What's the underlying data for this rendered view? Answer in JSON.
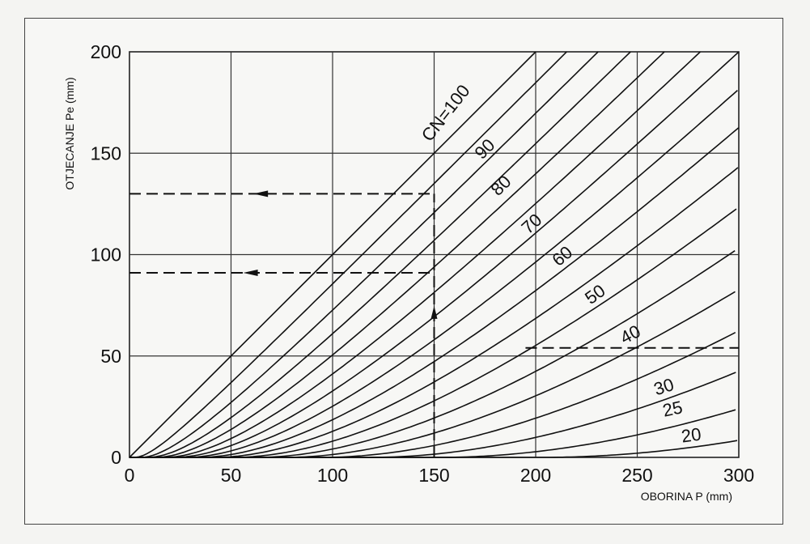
{
  "chart_data": {
    "type": "line",
    "title": "",
    "xlabel": "OBORINA P (mm)",
    "ylabel": "OTJECANJE Pe (mm)",
    "xlim": [
      0,
      300
    ],
    "ylim": [
      0,
      200
    ],
    "x_ticks": [
      0,
      50,
      100,
      150,
      200,
      250,
      300
    ],
    "y_ticks": [
      0,
      50,
      100,
      150,
      200
    ],
    "grid": true,
    "series": [
      {
        "name": "CN=100",
        "cn": 100
      },
      {
        "name": "",
        "cn": 95
      },
      {
        "name": "90",
        "cn": 90
      },
      {
        "name": "",
        "cn": 85
      },
      {
        "name": "80",
        "cn": 80
      },
      {
        "name": "",
        "cn": 75
      },
      {
        "name": "70",
        "cn": 70
      },
      {
        "name": "",
        "cn": 65
      },
      {
        "name": "60",
        "cn": 60
      },
      {
        "name": "",
        "cn": 55
      },
      {
        "name": "50",
        "cn": 50
      },
      {
        "name": "",
        "cn": 45
      },
      {
        "name": "40",
        "cn": 40
      },
      {
        "name": "",
        "cn": 35
      },
      {
        "name": "30",
        "cn": 30
      },
      {
        "name": "25",
        "cn": 25
      },
      {
        "name": "20",
        "cn": 20
      }
    ],
    "curve_labels": [
      {
        "text": "CN=100",
        "x": 158,
        "y": 168,
        "angle": -52
      },
      {
        "text": "90",
        "x": 177,
        "y": 150,
        "angle": -45
      },
      {
        "text": "80",
        "x": 185,
        "y": 132,
        "angle": -45
      },
      {
        "text": "70",
        "x": 200,
        "y": 113,
        "angle": -42
      },
      {
        "text": "60",
        "x": 215,
        "y": 97,
        "angle": -40
      },
      {
        "text": "50",
        "x": 231,
        "y": 78,
        "angle": -36
      },
      {
        "text": "40",
        "x": 248,
        "y": 58,
        "angle": -28
      },
      {
        "text": "30",
        "x": 264,
        "y": 32,
        "angle": -18
      },
      {
        "text": "25",
        "x": 268,
        "y": 21,
        "angle": -12
      },
      {
        "text": "20",
        "x": 277,
        "y": 8,
        "angle": -8
      }
    ],
    "annotations": [
      {
        "type": "dashed-vertical",
        "x": 150,
        "y_from": 0,
        "y_to": 130
      },
      {
        "type": "dashed-horizontal",
        "y": 130,
        "x_from": 0,
        "x_to": 150,
        "arrow_at_x": 65
      },
      {
        "type": "dashed-horizontal",
        "y": 91,
        "x_from": 0,
        "x_to": 150,
        "arrow_at_x": 60
      },
      {
        "type": "dashed-horizontal",
        "y": 54,
        "x_from": 195,
        "x_to": 300
      }
    ]
  }
}
